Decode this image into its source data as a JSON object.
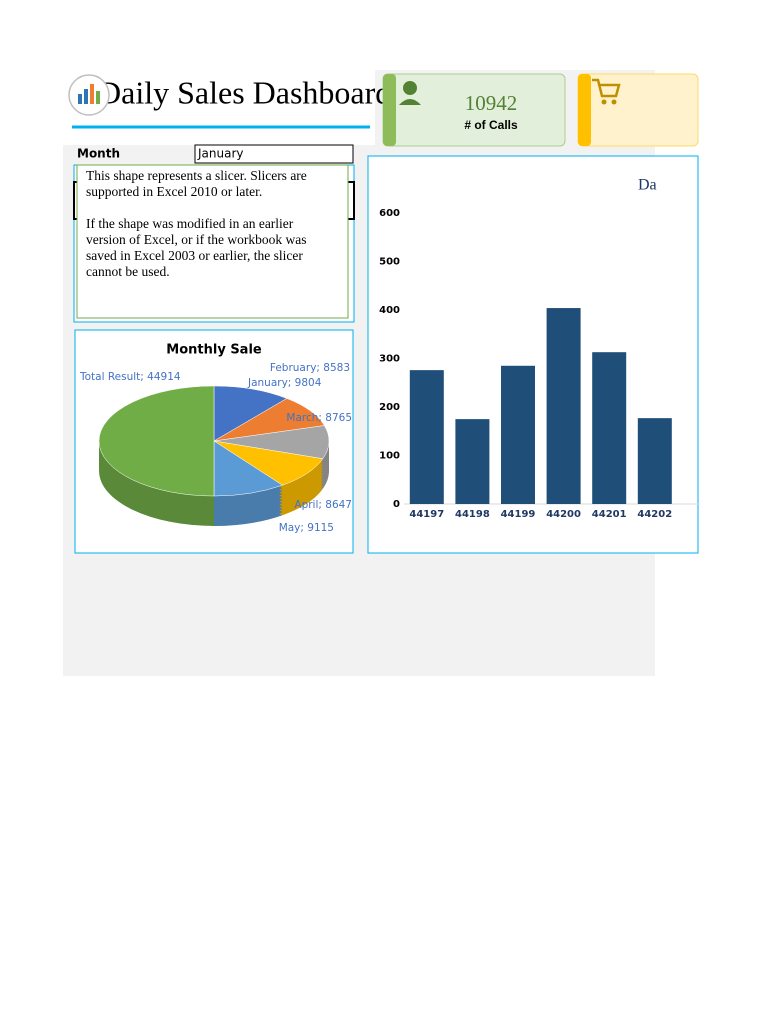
{
  "header": {
    "title": "Daily Sales Dashboard"
  },
  "kpis": [
    {
      "value": 10942,
      "label": "# of Calls"
    }
  ],
  "slicer": {
    "label": "Month",
    "selected": "January",
    "note": [
      "This shape represents a slicer. Slicers are",
      "supported in Excel 2010 or later.",
      "If the shape was modified in an earlier",
      "version of Excel, or if the workbook was",
      "saved in Excel 2003 or earlier, the slicer",
      "cannot be used."
    ]
  },
  "chart_data": [
    {
      "type": "pie",
      "title": "Monthly Sale",
      "values": [
        9804,
        8583,
        8765,
        8647,
        9115,
        44914
      ],
      "value_labels": [
        "January; 9804",
        "February; 8583",
        "March; 8765",
        "April; 8647",
        "May; 9115",
        "Total Result; 44914"
      ],
      "colors": [
        "#4472c4",
        "#ed7d31",
        "#a5a5a5",
        "#ffc000",
        "#5b9bd5",
        "#70ad47"
      ]
    },
    {
      "type": "bar",
      "title": "Da",
      "categories": [
        "44197",
        "44198",
        "44199",
        "44200",
        "44201",
        "44202"
      ],
      "values": [
        276,
        175,
        285,
        404,
        313,
        177
      ],
      "color": "#1f4e79",
      "ylim": [
        0,
        600
      ],
      "yticks": [
        0,
        100,
        200,
        300,
        400,
        500,
        600
      ],
      "grid": false
    }
  ]
}
